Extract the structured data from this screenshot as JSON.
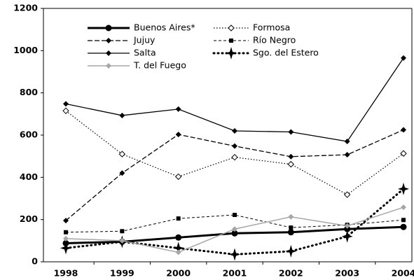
{
  "chart_data": {
    "type": "line",
    "categories": [
      "1998",
      "1999",
      "2000",
      "2001",
      "2002",
      "2003",
      "2004"
    ],
    "series": [
      {
        "name": "Buenos Aires*",
        "color": "#000000",
        "width": 3,
        "dash": "none",
        "marker": "circle",
        "values": [
          88,
          95,
          115,
          135,
          140,
          155,
          165
        ]
      },
      {
        "name": "Formosa",
        "color": "#000000",
        "width": 1.2,
        "dash": "1.5 2.5",
        "marker": "open-diamond",
        "values": [
          715,
          510,
          403,
          495,
          462,
          318,
          513
        ]
      },
      {
        "name": "Jujuy",
        "color": "#000000",
        "width": 1.3,
        "dash": "7 3",
        "marker": "diamond",
        "values": [
          195,
          420,
          603,
          548,
          498,
          507,
          625
        ]
      },
      {
        "name": "Río Negro",
        "color": "#000000",
        "width": 1,
        "dash": "4 3",
        "marker": "square",
        "values": [
          140,
          145,
          205,
          222,
          162,
          175,
          198
        ]
      },
      {
        "name": "Salta",
        "color": "#000000",
        "width": 1.3,
        "dash": "none",
        "marker": "diamond",
        "values": [
          748,
          693,
          723,
          620,
          615,
          570,
          965
        ]
      },
      {
        "name": "Sgo. del Estero",
        "color": "#000000",
        "width": 3,
        "dash": "1 5",
        "marker": "star",
        "values": [
          65,
          95,
          65,
          35,
          50,
          120,
          345
        ]
      },
      {
        "name": "T. del Fuego",
        "color": "#a6a6a6",
        "width": 1.5,
        "dash": "none",
        "marker": "diamond",
        "values": [
          110,
          100,
          45,
          155,
          213,
          170,
          258
        ]
      }
    ],
    "ylim": [
      0,
      1200
    ],
    "yticks": [
      0,
      200,
      400,
      600,
      800,
      1000,
      1200
    ]
  }
}
